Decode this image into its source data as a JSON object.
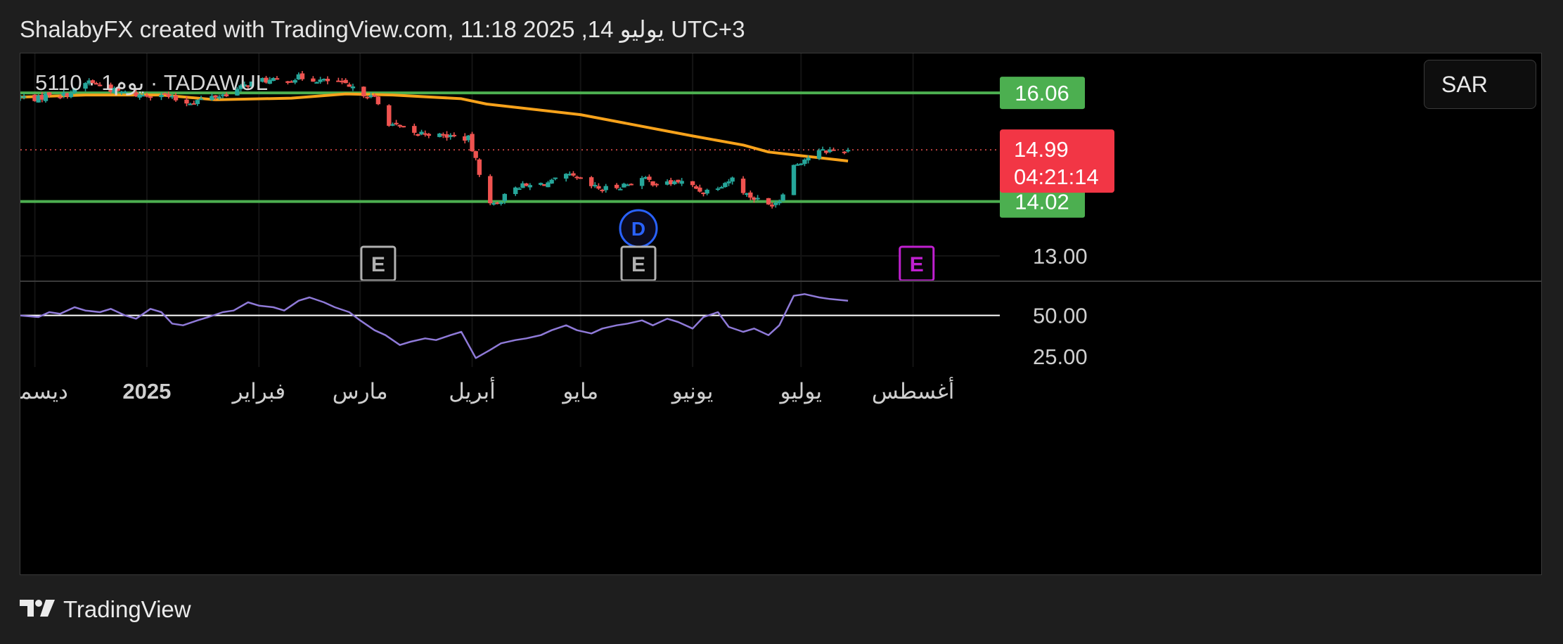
{
  "header": {
    "title": "ShalabyFX created with TradingView.com, 11:18 2025 ,14 يوليو UTC+3"
  },
  "symbol": {
    "label": "5110 · 1يوم · TADAWUL"
  },
  "currency": {
    "label": "SAR"
  },
  "footer": {
    "brand": "TradingView",
    "logo_icon": "tradingview-logo-icon"
  },
  "colors": {
    "background": "#000000",
    "frame": "#1e1e1e",
    "up": "#26a69a",
    "down": "#ef5350",
    "support_resistance": "#4caf50",
    "moving_average": "#f7a21b",
    "rsi": "#8f7ad8",
    "rsi_midline": "#ffffff",
    "last_price_badge": "#f23645",
    "level_badge": "#4caf50",
    "dividend": "#2962ff",
    "earnings_past": "#b0b0b0",
    "earnings_future": "#c020d0"
  },
  "chart_data": {
    "type": "candlestick",
    "price_axis": {
      "range": [
        12.55,
        16.8
      ],
      "ticks": [
        {
          "value": 13.0,
          "label": "13.00"
        }
      ],
      "last_price": {
        "value": 14.99,
        "label": "14.99",
        "countdown": "04:21:14"
      },
      "levels": [
        {
          "value": 16.06,
          "label": "16.06"
        },
        {
          "value": 14.02,
          "label": "14.02"
        }
      ]
    },
    "time_axis": {
      "range": [
        "2024-11-27",
        "2025-08-25"
      ],
      "ticks": [
        {
          "date": "2024-12-01",
          "label": "ديسمبر",
          "bold": false
        },
        {
          "date": "2025-01-01",
          "label": "2025",
          "bold": true
        },
        {
          "date": "2025-02-01",
          "label": "فبراير",
          "bold": false
        },
        {
          "date": "2025-03-01",
          "label": "مارس",
          "bold": false
        },
        {
          "date": "2025-04-01",
          "label": "أبريل",
          "bold": false
        },
        {
          "date": "2025-05-01",
          "label": "مايو",
          "bold": false
        },
        {
          "date": "2025-06-01",
          "label": "يونيو",
          "bold": false
        },
        {
          "date": "2025-07-01",
          "label": "يوليو",
          "bold": false
        },
        {
          "date": "2025-08-01",
          "label": "أغسطس",
          "bold": false
        }
      ]
    },
    "close_path": [
      [
        "2024-11-27",
        15.98
      ],
      [
        "2024-12-02",
        15.95
      ],
      [
        "2024-12-05",
        16.05
      ],
      [
        "2024-12-09",
        16.02
      ],
      [
        "2024-12-12",
        16.1
      ],
      [
        "2024-12-16",
        16.28
      ],
      [
        "2024-12-19",
        16.2
      ],
      [
        "2024-12-23",
        16.1
      ],
      [
        "2024-12-26",
        16.05
      ],
      [
        "2024-12-30",
        16.02
      ],
      [
        "2025-01-05",
        16.05
      ],
      [
        "2025-01-08",
        15.95
      ],
      [
        "2025-01-12",
        15.88
      ],
      [
        "2025-01-15",
        15.92
      ],
      [
        "2025-01-19",
        15.98
      ],
      [
        "2025-01-22",
        16.02
      ],
      [
        "2025-01-26",
        16.12
      ],
      [
        "2025-01-29",
        16.22
      ],
      [
        "2025-02-02",
        16.3
      ],
      [
        "2025-02-05",
        16.28
      ],
      [
        "2025-02-09",
        16.3
      ],
      [
        "2025-02-12",
        16.35
      ],
      [
        "2025-02-16",
        16.32
      ],
      [
        "2025-02-19",
        16.28
      ],
      [
        "2025-02-23",
        16.27
      ],
      [
        "2025-02-26",
        16.15
      ],
      [
        "2025-03-02",
        16.05
      ],
      [
        "2025-03-05",
        15.95
      ],
      [
        "2025-03-09",
        15.5
      ],
      [
        "2025-03-12",
        15.4
      ],
      [
        "2025-03-16",
        15.28
      ],
      [
        "2025-03-19",
        15.32
      ],
      [
        "2025-03-23",
        15.25
      ],
      [
        "2025-03-26",
        15.25
      ],
      [
        "2025-03-31",
        15.2
      ],
      [
        "2025-04-06",
        13.95
      ],
      [
        "2025-04-09",
        14.05
      ],
      [
        "2025-04-13",
        14.32
      ],
      [
        "2025-04-16",
        14.3
      ],
      [
        "2025-04-20",
        14.35
      ],
      [
        "2025-04-23",
        14.38
      ],
      [
        "2025-04-27",
        14.5
      ],
      [
        "2025-04-30",
        14.45
      ],
      [
        "2025-05-04",
        14.3
      ],
      [
        "2025-05-07",
        14.25
      ],
      [
        "2025-05-11",
        14.3
      ],
      [
        "2025-05-14",
        14.35
      ],
      [
        "2025-05-18",
        14.45
      ],
      [
        "2025-05-21",
        14.38
      ],
      [
        "2025-05-25",
        14.35
      ],
      [
        "2025-05-28",
        14.4
      ],
      [
        "2025-06-01",
        14.3
      ],
      [
        "2025-06-04",
        14.2
      ],
      [
        "2025-06-09",
        14.35
      ],
      [
        "2025-06-12",
        14.45
      ],
      [
        "2025-06-16",
        14.15
      ],
      [
        "2025-06-19",
        14.05
      ],
      [
        "2025-06-22",
        13.95
      ],
      [
        "2025-06-25",
        14.05
      ],
      [
        "2025-06-29",
        14.7
      ],
      [
        "2025-07-02",
        14.82
      ],
      [
        "2025-07-06",
        14.95
      ],
      [
        "2025-07-09",
        14.98
      ],
      [
        "2025-07-14",
        14.99
      ]
    ],
    "moving_average": [
      [
        "2024-11-27",
        15.98
      ],
      [
        "2024-12-15",
        16.02
      ],
      [
        "2025-01-05",
        16.02
      ],
      [
        "2025-01-20",
        15.93
      ],
      [
        "2025-02-10",
        15.96
      ],
      [
        "2025-02-25",
        16.04
      ],
      [
        "2025-03-10",
        16.02
      ],
      [
        "2025-03-29",
        15.95
      ],
      [
        "2025-04-05",
        15.85
      ],
      [
        "2025-05-01",
        15.65
      ],
      [
        "2025-06-01",
        15.25
      ],
      [
        "2025-06-15",
        15.08
      ],
      [
        "2025-06-22",
        14.95
      ],
      [
        "2025-07-01",
        14.88
      ],
      [
        "2025-07-14",
        14.78
      ]
    ],
    "rsi": {
      "range": [
        22,
        70
      ],
      "ticks": [
        {
          "value": 50,
          "label": "50.00"
        },
        {
          "value": 25,
          "label": "25.00"
        }
      ],
      "midline": 50,
      "points": [
        [
          "2024-11-27",
          50
        ],
        [
          "2024-12-02",
          49
        ],
        [
          "2024-12-05",
          52
        ],
        [
          "2024-12-08",
          51
        ],
        [
          "2024-12-12",
          55
        ],
        [
          "2024-12-15",
          53
        ],
        [
          "2024-12-19",
          52
        ],
        [
          "2024-12-22",
          54
        ],
        [
          "2024-12-26",
          50
        ],
        [
          "2024-12-29",
          48
        ],
        [
          "2025-01-02",
          54
        ],
        [
          "2025-01-05",
          52
        ],
        [
          "2025-01-08",
          45
        ],
        [
          "2025-01-11",
          44
        ],
        [
          "2025-01-15",
          47
        ],
        [
          "2025-01-18",
          49
        ],
        [
          "2025-01-22",
          52
        ],
        [
          "2025-01-25",
          53
        ],
        [
          "2025-01-29",
          58
        ],
        [
          "2025-02-01",
          56
        ],
        [
          "2025-02-05",
          55
        ],
        [
          "2025-02-08",
          53
        ],
        [
          "2025-02-12",
          59
        ],
        [
          "2025-02-15",
          61
        ],
        [
          "2025-02-19",
          58
        ],
        [
          "2025-02-22",
          55
        ],
        [
          "2025-02-26",
          52
        ],
        [
          "2025-03-01",
          47
        ],
        [
          "2025-03-05",
          41
        ],
        [
          "2025-03-08",
          38
        ],
        [
          "2025-03-12",
          32
        ],
        [
          "2025-03-15",
          34
        ],
        [
          "2025-03-19",
          36
        ],
        [
          "2025-03-22",
          35
        ],
        [
          "2025-03-26",
          38
        ],
        [
          "2025-03-29",
          40
        ],
        [
          "2025-04-02",
          24
        ],
        [
          "2025-04-06",
          29
        ],
        [
          "2025-04-09",
          33
        ],
        [
          "2025-04-13",
          35
        ],
        [
          "2025-04-16",
          36
        ],
        [
          "2025-04-20",
          38
        ],
        [
          "2025-04-23",
          41
        ],
        [
          "2025-04-27",
          44
        ],
        [
          "2025-04-30",
          41
        ],
        [
          "2025-05-04",
          39
        ],
        [
          "2025-05-07",
          42
        ],
        [
          "2025-05-11",
          44
        ],
        [
          "2025-05-14",
          45
        ],
        [
          "2025-05-18",
          47
        ],
        [
          "2025-05-21",
          44
        ],
        [
          "2025-05-25",
          48
        ],
        [
          "2025-05-28",
          46
        ],
        [
          "2025-06-01",
          42
        ],
        [
          "2025-06-04",
          49
        ],
        [
          "2025-06-08",
          52
        ],
        [
          "2025-06-11",
          43
        ],
        [
          "2025-06-15",
          40
        ],
        [
          "2025-06-18",
          42
        ],
        [
          "2025-06-22",
          38
        ],
        [
          "2025-06-25",
          44
        ],
        [
          "2025-06-29",
          62
        ],
        [
          "2025-07-02",
          63
        ],
        [
          "2025-07-06",
          61
        ],
        [
          "2025-07-09",
          60
        ],
        [
          "2025-07-14",
          59
        ]
      ]
    },
    "events": [
      {
        "date": "2025-03-06",
        "label": "E",
        "kind": "earnings",
        "future": false
      },
      {
        "date": "2025-05-17",
        "label": "D",
        "kind": "dividend",
        "future": false
      },
      {
        "date": "2025-05-17",
        "label": "E",
        "kind": "earnings",
        "future": false
      },
      {
        "date": "2025-08-02",
        "label": "E",
        "kind": "earnings",
        "future": true
      }
    ]
  }
}
